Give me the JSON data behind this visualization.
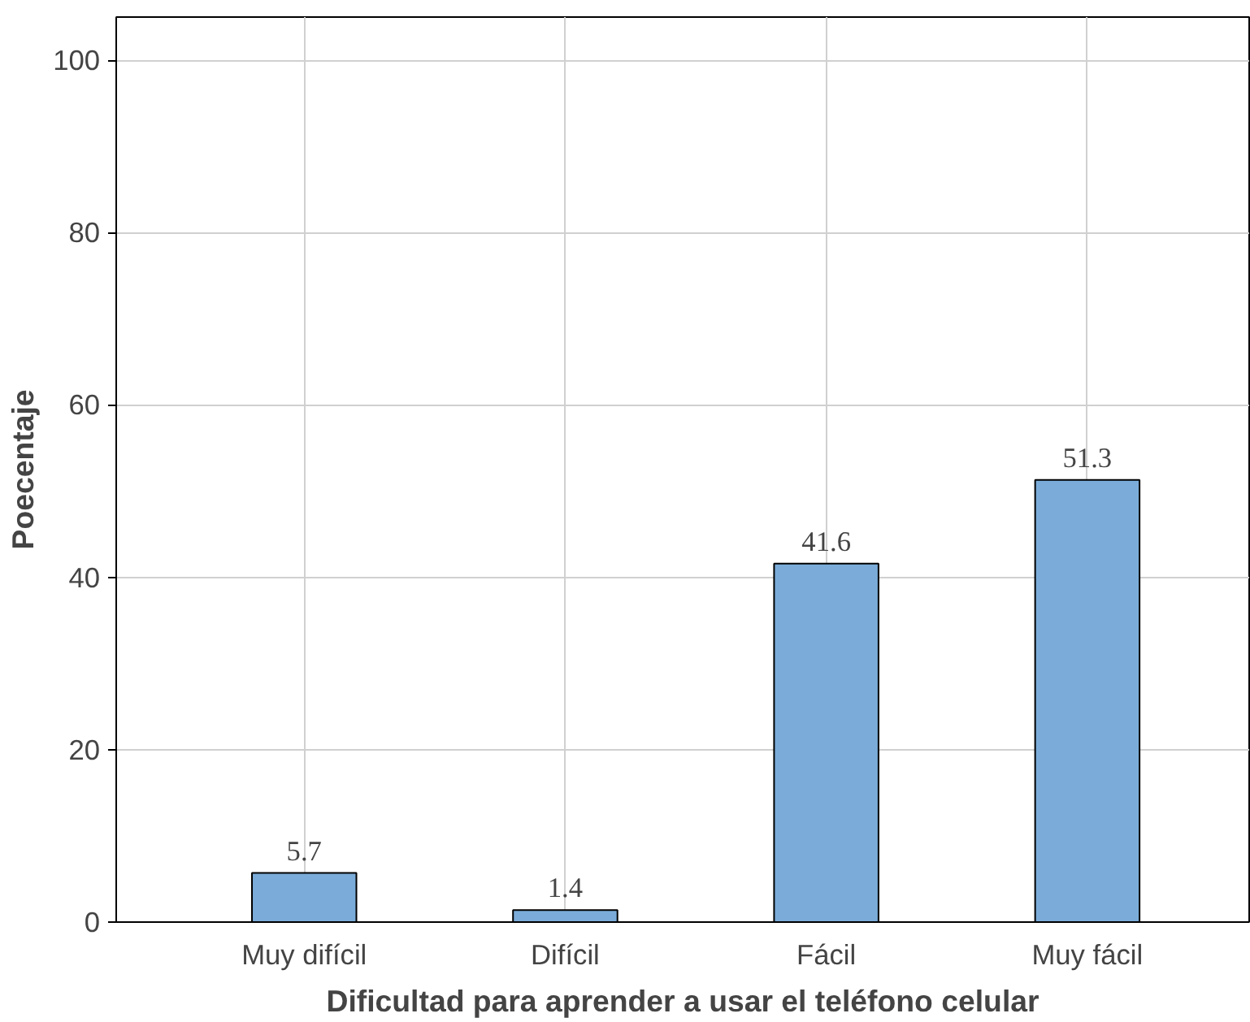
{
  "chart_data": {
    "type": "bar",
    "xlabel": "Dificultad para aprender a usar el teléfono celular",
    "ylabel": "Poecentaje",
    "categories": [
      "Muy difícil",
      "Difícil",
      "Fácil",
      "Muy fácil"
    ],
    "values": [
      5.7,
      1.4,
      41.6,
      51.3
    ],
    "color": "#7bacd9",
    "ylim": [
      0,
      105
    ],
    "yticks": [
      0,
      20,
      40,
      60,
      80,
      100
    ],
    "grid": true,
    "data_labels": true
  }
}
